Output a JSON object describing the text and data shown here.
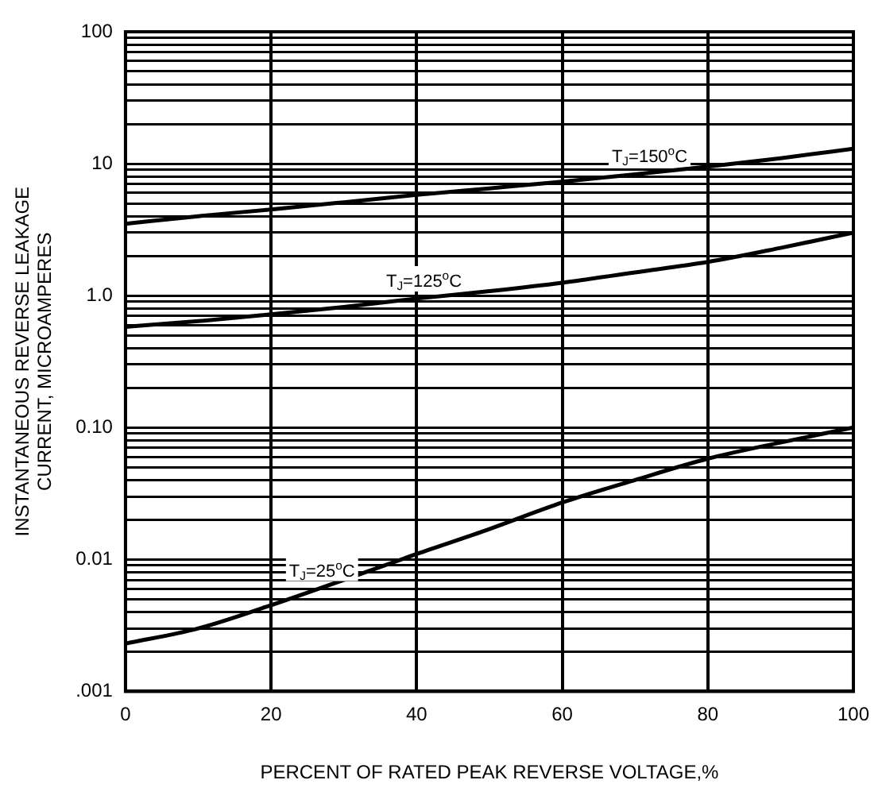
{
  "chart_data": {
    "type": "line",
    "xlabel": "PERCENT OF RATED PEAK REVERSE VOLTAGE,%",
    "ylabel": "INSTANTANEOUS REVERSE LEAKAGE\nCURRENT, MICROAMPERES",
    "x": [
      0,
      10,
      20,
      30,
      40,
      50,
      60,
      70,
      80,
      90,
      100
    ],
    "series": [
      {
        "name": "T$_{J}$=150$^{o}$C",
        "color": "#000000",
        "values": [
          3.5,
          4.0,
          4.5,
          5.1,
          5.8,
          6.5,
          7.3,
          8.3,
          9.5,
          11,
          13
        ]
      },
      {
        "name": "T$_{J}$=125$^{o}$C",
        "color": "#000000",
        "values": [
          0.58,
          0.64,
          0.72,
          0.82,
          0.95,
          1.08,
          1.25,
          1.5,
          1.8,
          2.3,
          3.0
        ]
      },
      {
        "name": "T$_{J}$=25$^{o}$C",
        "color": "#000000",
        "values": [
          0.0023,
          0.003,
          0.0045,
          0.007,
          0.011,
          0.017,
          0.027,
          0.04,
          0.058,
          0.077,
          0.1
        ]
      }
    ],
    "log": "y",
    "ylim": [
      0.001,
      100
    ],
    "yticks": [
      {
        "value": 0.001,
        "label": ".001"
      },
      {
        "value": 0.002,
        "label": null
      },
      {
        "value": 0.003,
        "label": null
      },
      {
        "value": 0.004,
        "label": null
      },
      {
        "value": 0.005,
        "label": null
      },
      {
        "value": 0.006,
        "label": null
      },
      {
        "value": 0.007,
        "label": null
      },
      {
        "value": 0.008,
        "label": null
      },
      {
        "value": 0.009,
        "label": null
      },
      {
        "value": 0.01,
        "label": "0.01"
      },
      {
        "value": 0.02,
        "label": null
      },
      {
        "value": 0.03,
        "label": null
      },
      {
        "value": 0.04,
        "label": null
      },
      {
        "value": 0.05,
        "label": null
      },
      {
        "value": 0.06,
        "label": null
      },
      {
        "value": 0.07,
        "label": null
      },
      {
        "value": 0.08,
        "label": null
      },
      {
        "value": 0.09,
        "label": null
      },
      {
        "value": 0.1,
        "label": "0.10"
      },
      {
        "value": 0.2,
        "label": null
      },
      {
        "value": 0.3,
        "label": null
      },
      {
        "value": 0.4,
        "label": null
      },
      {
        "value": 0.5,
        "label": null
      },
      {
        "value": 0.6,
        "label": null
      },
      {
        "value": 0.7,
        "label": null
      },
      {
        "value": 0.8,
        "label": null
      },
      {
        "value": 0.9,
        "label": null
      },
      {
        "value": 1,
        "label": "1.0"
      },
      {
        "value": 2,
        "label": null
      },
      {
        "value": 3,
        "label": null
      },
      {
        "value": 4,
        "label": null
      },
      {
        "value": 5,
        "label": null
      },
      {
        "value": 6,
        "label": null
      },
      {
        "value": 7,
        "label": null
      },
      {
        "value": 8,
        "label": null
      },
      {
        "value": 9,
        "label": null
      },
      {
        "value": 10,
        "label": "10"
      },
      {
        "value": 20,
        "label": null
      },
      {
        "value": 30,
        "label": null
      },
      {
        "value": 40,
        "label": null
      },
      {
        "value": 50,
        "label": null
      },
      {
        "value": 60,
        "label": null
      },
      {
        "value": 70,
        "label": null
      },
      {
        "value": 80,
        "label": null
      },
      {
        "value": 90,
        "label": null
      },
      {
        "value": 100,
        "label": "100"
      }
    ],
    "xlim": [
      0,
      100
    ],
    "xticks": [
      0,
      20,
      40,
      60,
      80,
      100
    ],
    "grid": true,
    "legend": false,
    "marker": "none",
    "line_style": "solid"
  }
}
